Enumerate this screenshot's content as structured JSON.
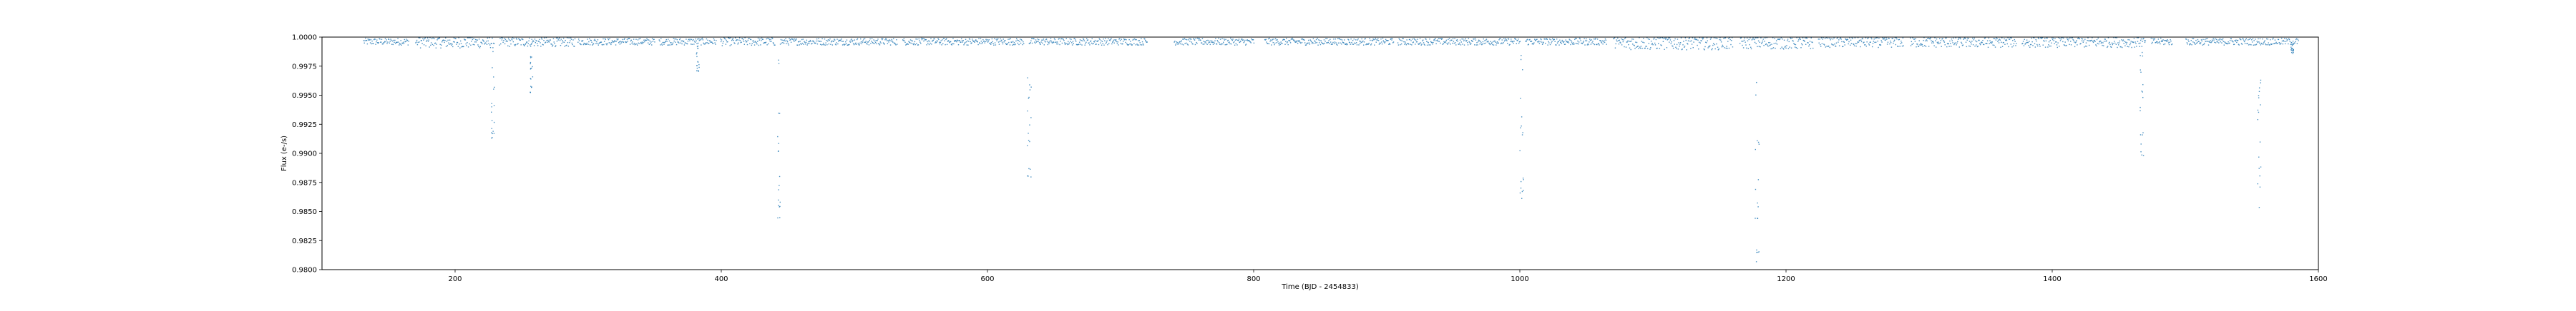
{
  "chart_data": {
    "type": "scatter",
    "title": "",
    "xlabel": "Time (BJD - 2454833)",
    "ylabel": "Flux (e-/s)",
    "xlim": [
      100,
      1600
    ],
    "ylim": [
      0.98,
      1.0
    ],
    "x_ticks": [
      200,
      400,
      600,
      800,
      1000,
      1200,
      1400,
      1600
    ],
    "x_tick_labels": [
      "200",
      "400",
      "600",
      "800",
      "1000",
      "1200",
      "1400",
      "1600"
    ],
    "y_ticks": [
      0.98,
      0.9825,
      0.985,
      0.9875,
      0.99,
      0.9925,
      0.995,
      0.9975,
      1.0
    ],
    "y_tick_labels": [
      "0.9800",
      "0.9825",
      "0.9850",
      "0.9875",
      "0.9900",
      "0.9925",
      "0.9950",
      "0.9975",
      "1.0000"
    ],
    "grid": false,
    "legend": false,
    "marker_color": "#1f77b4",
    "baseline_segments": [
      {
        "start": 131,
        "end": 165,
        "level": 0.99965,
        "scatter": 0.0003
      },
      {
        "start": 170,
        "end": 229,
        "level": 0.9996,
        "scatter": 0.0005
      },
      {
        "start": 233,
        "end": 290,
        "level": 0.99962,
        "scatter": 0.0004
      },
      {
        "start": 292,
        "end": 350,
        "level": 0.99965,
        "scatter": 0.0003
      },
      {
        "start": 353,
        "end": 396,
        "level": 0.99965,
        "scatter": 0.0003
      },
      {
        "start": 399,
        "end": 440,
        "level": 0.99965,
        "scatter": 0.00035
      },
      {
        "start": 444,
        "end": 532,
        "level": 0.99965,
        "scatter": 0.0003
      },
      {
        "start": 536,
        "end": 627,
        "level": 0.99965,
        "scatter": 0.0003
      },
      {
        "start": 631,
        "end": 720,
        "level": 0.99965,
        "scatter": 0.0003
      },
      {
        "start": 740,
        "end": 800,
        "level": 0.99965,
        "scatter": 0.0003
      },
      {
        "start": 808,
        "end": 905,
        "level": 0.99965,
        "scatter": 0.0003
      },
      {
        "start": 908,
        "end": 1000,
        "level": 0.99965,
        "scatter": 0.0003
      },
      {
        "start": 1004,
        "end": 1065,
        "level": 0.99965,
        "scatter": 0.0003
      },
      {
        "start": 1070,
        "end": 1160,
        "level": 0.99955,
        "scatter": 0.0006
      },
      {
        "start": 1165,
        "end": 1220,
        "level": 0.99955,
        "scatter": 0.00055
      },
      {
        "start": 1224,
        "end": 1288,
        "level": 0.9996,
        "scatter": 0.00045
      },
      {
        "start": 1293,
        "end": 1373,
        "level": 0.9996,
        "scatter": 0.00045
      },
      {
        "start": 1377,
        "end": 1470,
        "level": 0.9996,
        "scatter": 0.00045
      },
      {
        "start": 1474,
        "end": 1490,
        "level": 0.99965,
        "scatter": 0.0003
      },
      {
        "start": 1500,
        "end": 1585,
        "level": 0.99965,
        "scatter": 0.0003
      }
    ],
    "dips": [
      {
        "center": 228,
        "depth": 0.0085,
        "width": 2.5
      },
      {
        "center": 257,
        "depth": 0.0045,
        "width": 2
      },
      {
        "center": 443,
        "depth": 0.0155,
        "width": 3
      },
      {
        "center": 631,
        "depth": 0.0125,
        "width": 3
      },
      {
        "center": 1001,
        "depth": 0.0135,
        "width": 3
      },
      {
        "center": 1178,
        "depth": 0.02,
        "width": 3
      },
      {
        "center": 1467,
        "depth": 0.01,
        "width": 3
      },
      {
        "center": 1555,
        "depth": 0.0145,
        "width": 3
      },
      {
        "center": 382,
        "depth": 0.0025,
        "width": 2
      },
      {
        "center": 1580,
        "depth": 0.001,
        "width": 2
      }
    ]
  }
}
